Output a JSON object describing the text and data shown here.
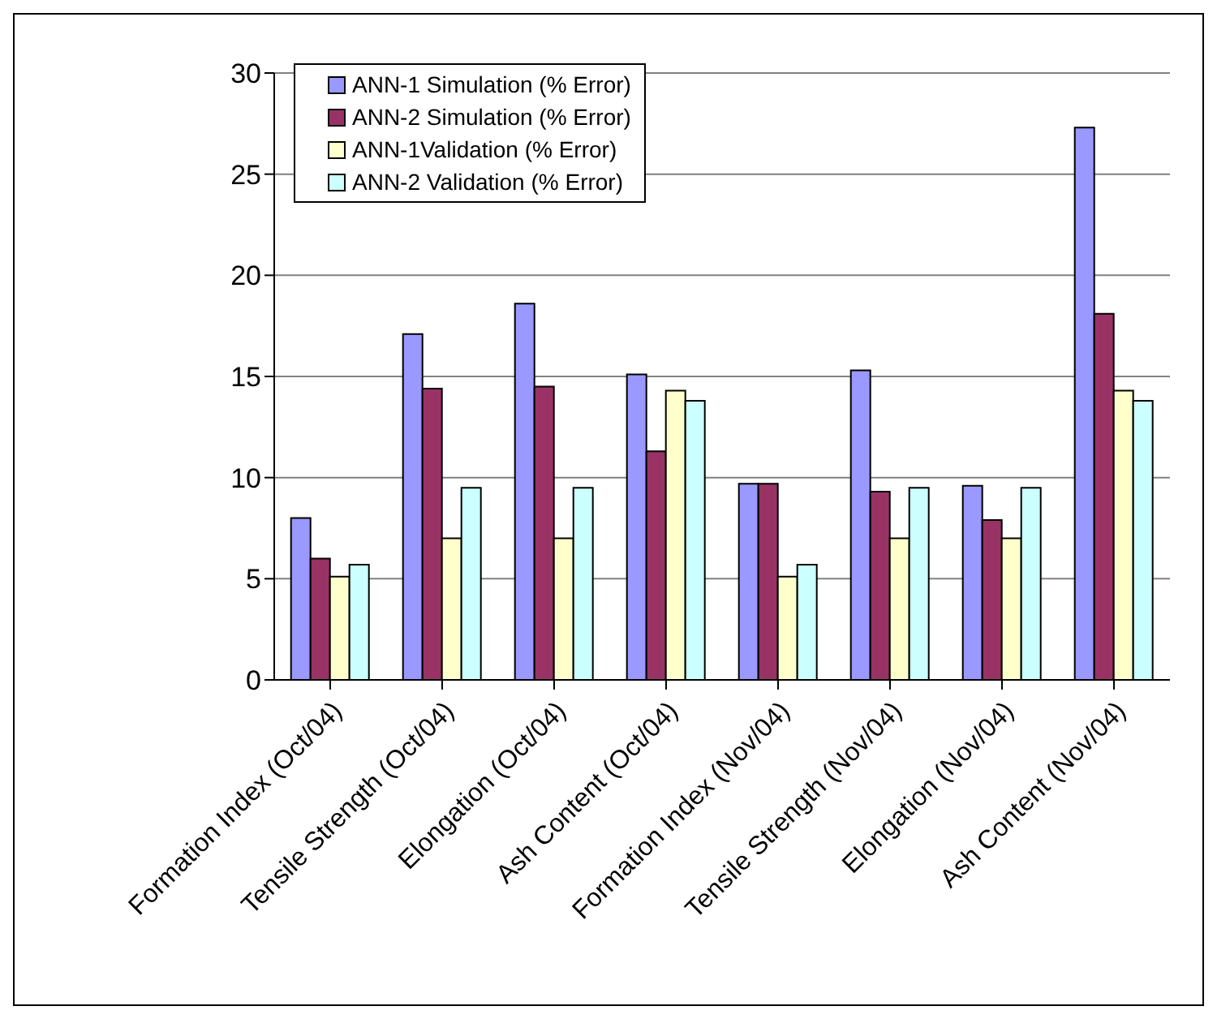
{
  "chart_data": {
    "type": "bar",
    "categories": [
      "Formation Index (Oct/04)",
      "Tensile Strength (Oct/04)",
      "Elongation (Oct/04)",
      "Ash Content (Oct/04)",
      "Formation Index (Nov/04)",
      "Tensile Strength (Nov/04)",
      "Elongation (Nov/04)",
      "Ash Content (Nov/04)"
    ],
    "series": [
      {
        "name": "ANN-1 Simulation (% Error)",
        "color": "#9999ff",
        "values": [
          8.0,
          17.1,
          18.6,
          15.1,
          9.7,
          15.3,
          9.6,
          27.3
        ]
      },
      {
        "name": "ANN-2 Simulation (% Error)",
        "color": "#993366",
        "values": [
          6.0,
          14.4,
          14.5,
          11.3,
          9.7,
          9.3,
          7.9,
          18.1
        ]
      },
      {
        "name": "ANN-1Validation (% Error)",
        "color": "#ffffcc",
        "values": [
          5.1,
          7.0,
          7.0,
          14.3,
          5.1,
          7.0,
          7.0,
          14.3
        ]
      },
      {
        "name": "ANN-2 Validation (% Error)",
        "color": "#ccffff",
        "values": [
          5.7,
          9.5,
          9.5,
          13.8,
          5.7,
          9.5,
          9.5,
          13.8
        ]
      }
    ],
    "ylim": [
      0,
      30
    ],
    "yticks": [
      0,
      5,
      10,
      15,
      20,
      25,
      30
    ],
    "grid": "y",
    "legend": "top left"
  }
}
